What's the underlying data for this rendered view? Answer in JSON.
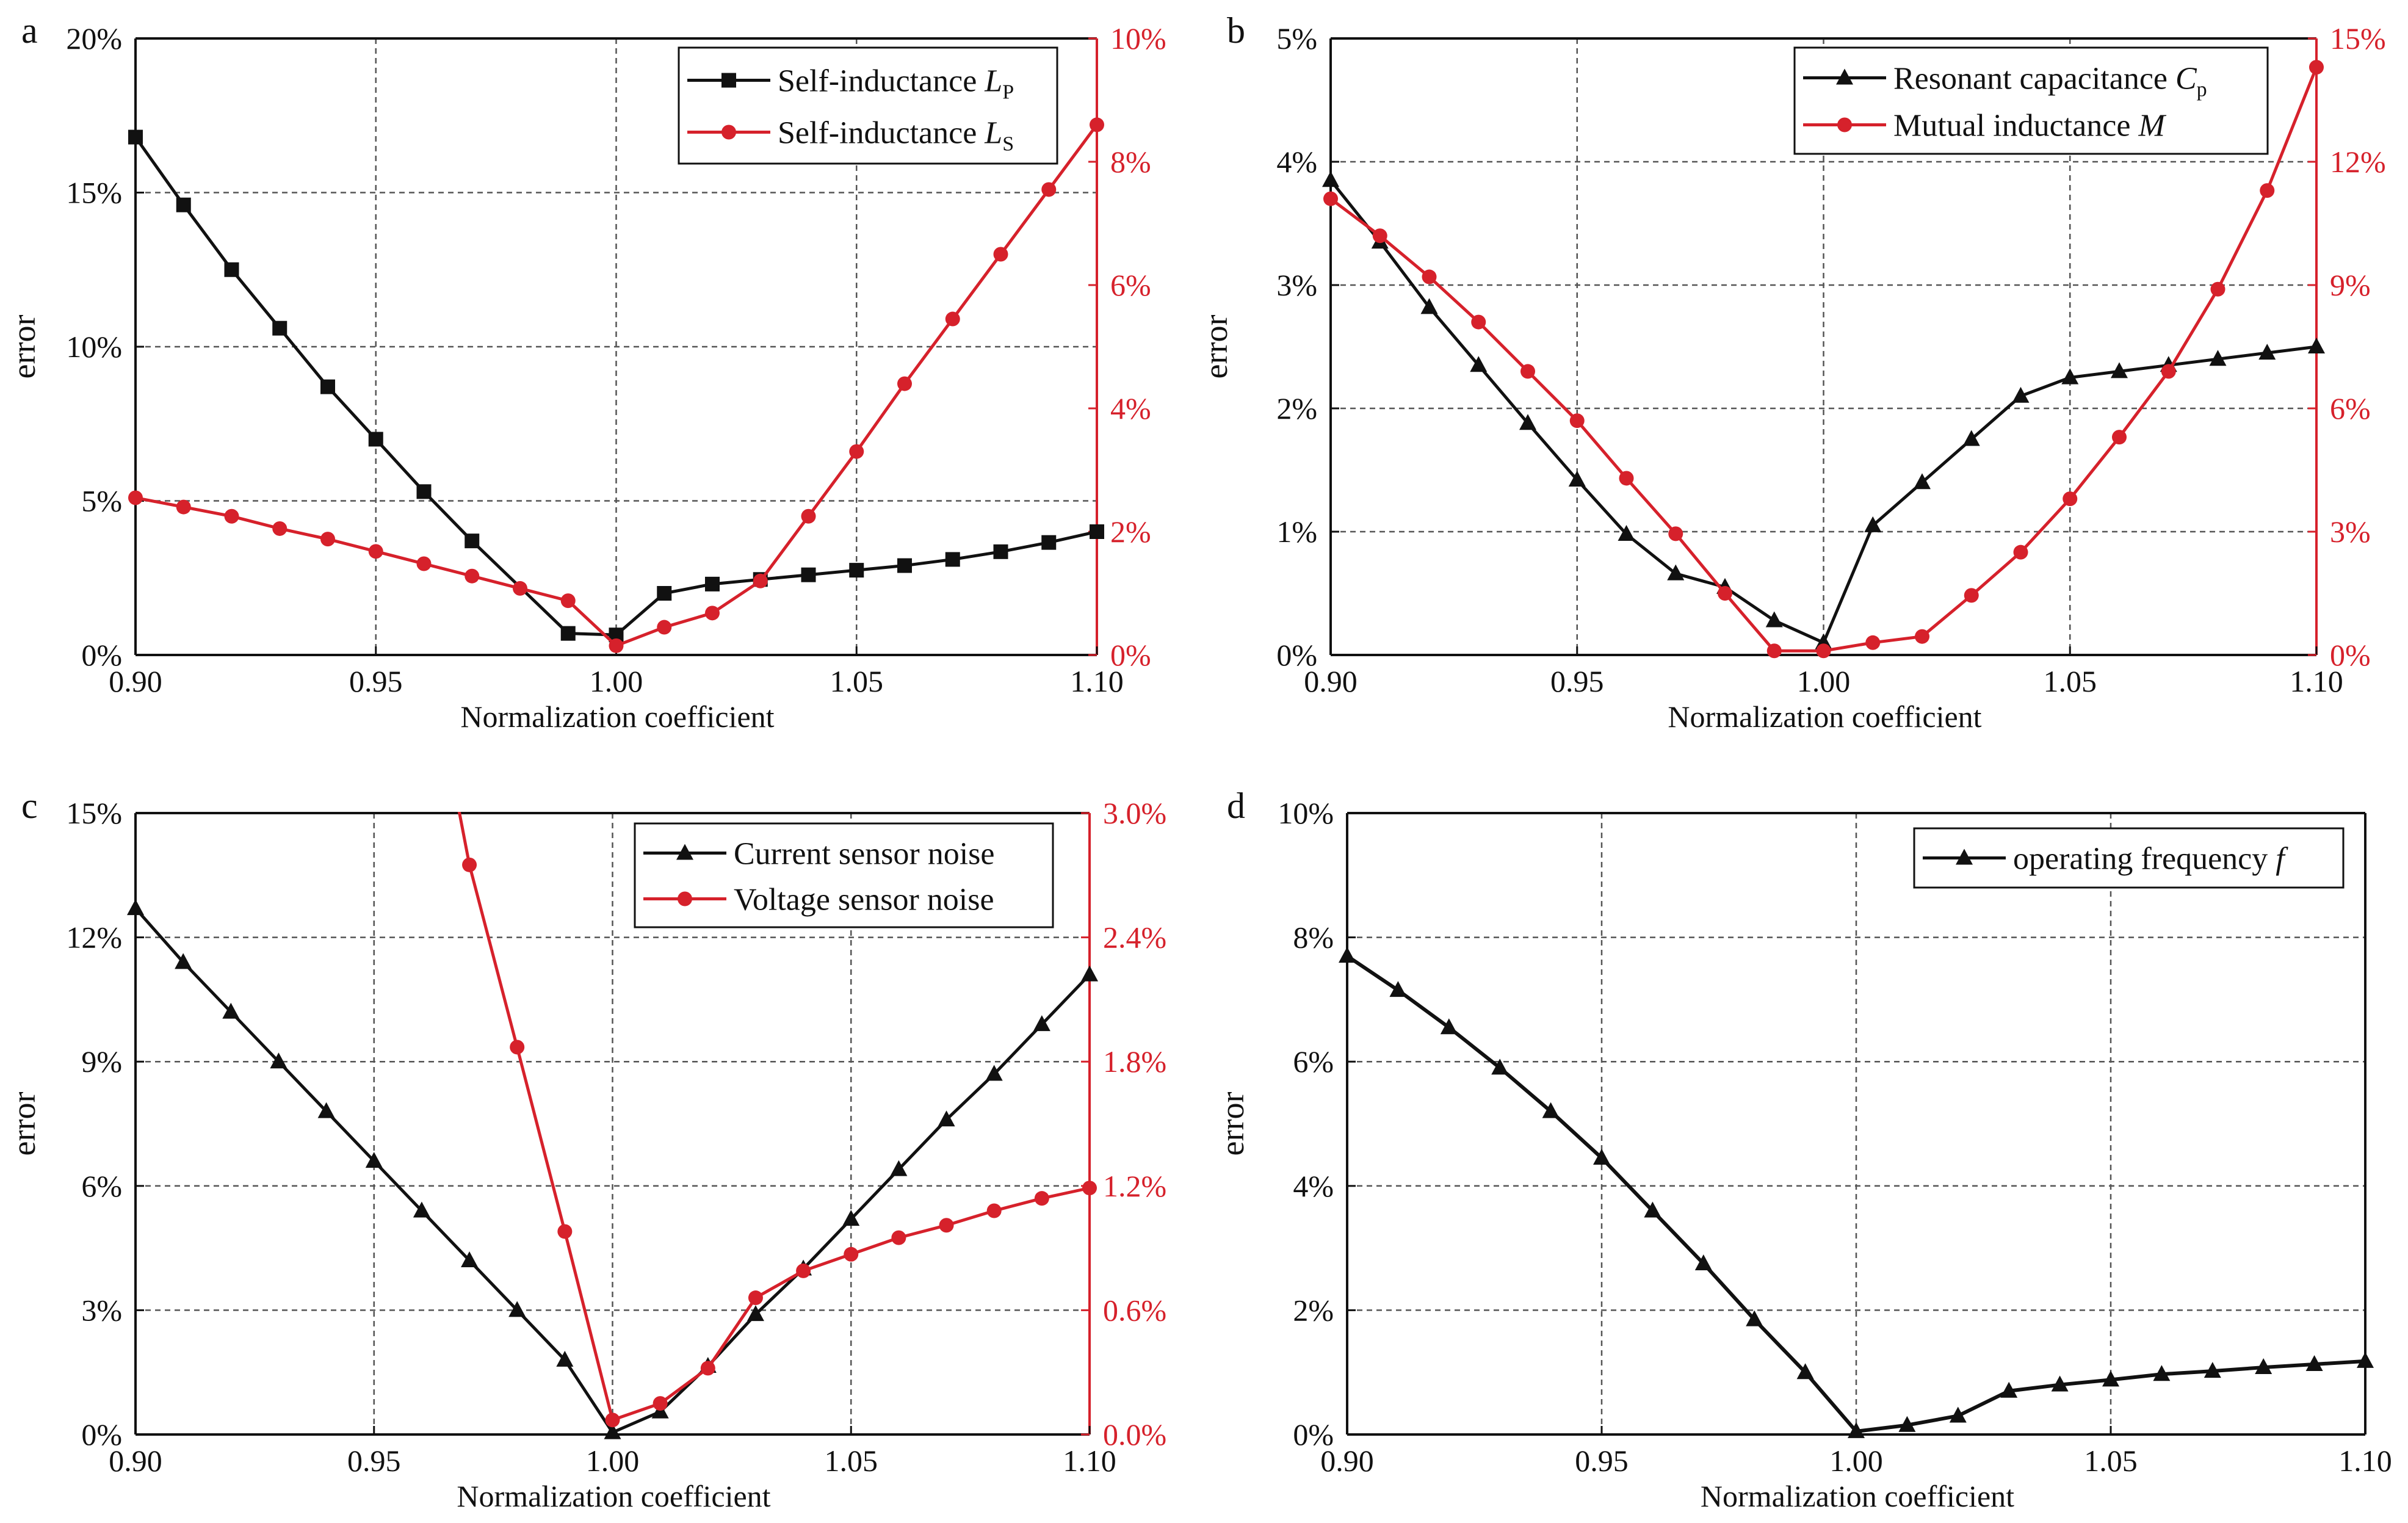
{
  "figure": {
    "colors": {
      "black": "#111111",
      "red": "#d6212b",
      "grid": "#555555"
    }
  },
  "chart_data": [
    {
      "panel": "a",
      "type": "line",
      "xlabel": "Normalization coefficient",
      "ylabel": "error",
      "xlim": [
        0.9,
        1.1
      ],
      "xticks": [
        "0.90",
        "0.95",
        "1.00",
        "1.05",
        "1.10"
      ],
      "ylim": [
        0,
        20
      ],
      "yticks": [
        "0%",
        "5%",
        "10%",
        "15%",
        "20%"
      ],
      "y2lim": [
        0,
        10
      ],
      "y2ticks": [
        "0%",
        "2%",
        "4%",
        "6%",
        "8%",
        "10%"
      ],
      "x": [
        0.9,
        0.91,
        0.92,
        0.93,
        0.94,
        0.95,
        0.96,
        0.97,
        0.98,
        0.99,
        1.0,
        1.01,
        1.02,
        1.03,
        1.04,
        1.05,
        1.06,
        1.07,
        1.08,
        1.09,
        1.1
      ],
      "series": [
        {
          "name": "Self-inductance L_P",
          "label": "Self-inductance ",
          "symbol": "L",
          "sub": "P",
          "axis": "left",
          "color": "#111111",
          "marker": "square",
          "values": [
            16.8,
            14.6,
            12.5,
            10.6,
            8.7,
            7.0,
            5.3,
            3.7,
            null,
            0.7,
            0.65,
            2.0,
            2.3,
            2.45,
            2.6,
            2.75,
            2.9,
            3.1,
            3.35,
            3.65,
            4.0
          ]
        },
        {
          "name": "Self-inductance L_S",
          "label": "Self-inductance ",
          "symbol": "L",
          "sub": "S",
          "axis": "right",
          "color": "#d6212b",
          "marker": "circle",
          "values": [
            2.55,
            2.4,
            2.25,
            2.05,
            1.88,
            1.68,
            1.48,
            1.28,
            1.08,
            0.88,
            0.15,
            0.45,
            0.68,
            1.2,
            2.25,
            3.3,
            4.4,
            5.45,
            6.5,
            7.55,
            8.6
          ]
        }
      ],
      "legend_position": "top-right"
    },
    {
      "panel": "b",
      "type": "line",
      "xlabel": "Normalization coefficient",
      "ylabel": "error",
      "xlim": [
        0.9,
        1.1
      ],
      "xticks": [
        "0.90",
        "0.95",
        "1.00",
        "1.05",
        "1.10"
      ],
      "ylim": [
        0,
        5
      ],
      "yticks": [
        "0%",
        "1%",
        "2%",
        "3%",
        "4%",
        "5%"
      ],
      "y2lim": [
        0,
        15
      ],
      "y2ticks": [
        "0%",
        "3%",
        "6%",
        "9%",
        "12%",
        "15%"
      ],
      "x": [
        0.9,
        0.91,
        0.92,
        0.93,
        0.94,
        0.95,
        0.96,
        0.97,
        0.98,
        0.99,
        1.0,
        1.01,
        1.02,
        1.03,
        1.04,
        1.05,
        1.06,
        1.07,
        1.08,
        1.09,
        1.1
      ],
      "series": [
        {
          "name": "Resonant capacitance C_p",
          "label": "Resonant capacitance ",
          "symbol": "C",
          "sub": "p",
          "axis": "left",
          "color": "#111111",
          "marker": "triangle",
          "values": [
            3.85,
            3.35,
            2.82,
            2.35,
            1.88,
            1.42,
            0.98,
            0.66,
            0.55,
            0.28,
            0.1,
            1.05,
            1.4,
            1.75,
            2.1,
            2.25,
            2.3,
            2.35,
            2.4,
            2.45,
            2.5
          ]
        },
        {
          "name": "Mutual inductance M",
          "label": "Mutual inductance ",
          "symbol": "M",
          "sub": "",
          "axis": "right",
          "color": "#d6212b",
          "marker": "circle",
          "values": [
            11.1,
            10.2,
            9.2,
            8.1,
            6.9,
            5.7,
            4.3,
            2.95,
            1.5,
            0.1,
            0.1,
            0.3,
            0.45,
            1.45,
            2.5,
            3.8,
            5.3,
            6.9,
            8.9,
            11.3,
            14.3
          ]
        }
      ],
      "legend_position": "top-right"
    },
    {
      "panel": "c",
      "type": "line",
      "xlabel": "Normalization coefficient",
      "ylabel": "error",
      "xlim": [
        0.9,
        1.1
      ],
      "xticks": [
        "0.90",
        "0.95",
        "1.00",
        "1.05",
        "1.10"
      ],
      "ylim": [
        0,
        15
      ],
      "yticks": [
        "0%",
        "3%",
        "6%",
        "9%",
        "12%",
        "15%"
      ],
      "y2lim": [
        0,
        3.0
      ],
      "y2ticks": [
        "0.0%",
        "0.6%",
        "1.2%",
        "1.8%",
        "2.4%",
        "3.0%"
      ],
      "x": [
        0.9,
        0.91,
        0.92,
        0.93,
        0.94,
        0.95,
        0.96,
        0.97,
        0.98,
        0.99,
        1.0,
        1.01,
        1.02,
        1.03,
        1.04,
        1.05,
        1.06,
        1.07,
        1.08,
        1.09,
        1.1
      ],
      "series": [
        {
          "name": "Current sensor noise",
          "label": "Current sensor noise",
          "symbol": "",
          "sub": "",
          "axis": "left",
          "color": "#111111",
          "marker": "triangle",
          "values": [
            12.7,
            11.4,
            10.2,
            9.0,
            7.8,
            6.6,
            5.4,
            4.2,
            3.0,
            1.8,
            0.05,
            0.55,
            1.65,
            2.9,
            4.0,
            5.2,
            6.4,
            7.6,
            8.7,
            9.9,
            11.1
          ]
        },
        {
          "name": "Voltage sensor noise",
          "label": "Voltage sensor noise",
          "symbol": "",
          "sub": "",
          "axis": "right",
          "color": "#d6212b",
          "marker": "circle",
          "lead_in": [
            0.9675,
            3.05
          ],
          "values": [
            null,
            null,
            null,
            null,
            null,
            null,
            null,
            2.75,
            1.87,
            0.98,
            0.07,
            0.15,
            0.32,
            0.66,
            0.79,
            0.87,
            0.95,
            1.01,
            1.08,
            1.14,
            1.19
          ]
        }
      ],
      "legend_position": "top-right"
    },
    {
      "panel": "d",
      "type": "line",
      "xlabel": "Normalization coefficient",
      "ylabel": "error",
      "xlim": [
        0.9,
        1.1
      ],
      "xticks": [
        "0.90",
        "0.95",
        "1.00",
        "1.05",
        "1.10"
      ],
      "ylim": [
        0,
        10
      ],
      "yticks": [
        "0%",
        "2%",
        "4%",
        "6%",
        "8%",
        "10%"
      ],
      "x": [
        0.9,
        0.91,
        0.92,
        0.93,
        0.94,
        0.95,
        0.96,
        0.97,
        0.98,
        0.99,
        1.0,
        1.01,
        1.02,
        1.03,
        1.04,
        1.05,
        1.06,
        1.07,
        1.08,
        1.09,
        1.1
      ],
      "series": [
        {
          "name": "operating frequency f",
          "label": "operating frequency ",
          "symbol": "f",
          "sub": "",
          "axis": "left",
          "color": "#111111",
          "marker": "triangle",
          "values": [
            7.7,
            7.15,
            6.55,
            5.9,
            5.2,
            4.45,
            3.6,
            2.75,
            1.85,
            1.0,
            0.05,
            0.15,
            0.3,
            0.7,
            0.8,
            0.88,
            0.97,
            1.02,
            1.08,
            1.13,
            1.18
          ]
        }
      ],
      "legend_position": "top-right"
    }
  ]
}
